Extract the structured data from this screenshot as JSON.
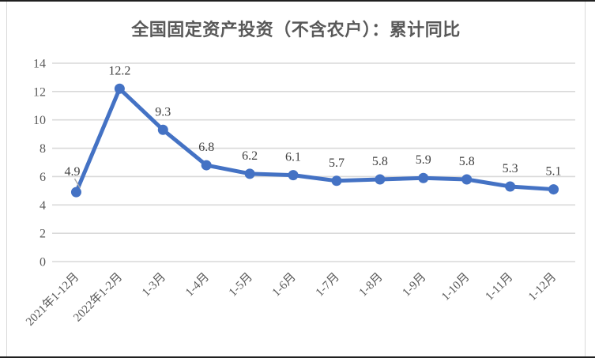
{
  "chart_data": {
    "type": "line",
    "title": "全国固定资产投资（不含农户）：累计同比",
    "categories": [
      "2021年1-12月",
      "2022年1-2月",
      "1-3月",
      "1-4月",
      "1-5月",
      "1-6月",
      "1-7月",
      "1-8月",
      "1-9月",
      "1-10月",
      "1-11月",
      "1-12月"
    ],
    "values": [
      4.9,
      12.2,
      9.3,
      6.8,
      6.2,
      6.1,
      5.7,
      5.8,
      5.9,
      5.8,
      5.3,
      5.1
    ],
    "ylim": [
      0,
      14
    ],
    "yticks": [
      0,
      2,
      4,
      6,
      8,
      10,
      12,
      14
    ],
    "xlabel": "",
    "ylabel": "",
    "grid": true,
    "legend": false,
    "data_labels": true,
    "data_label_decimals": 1,
    "first_label_leader_line": true,
    "x_tick_rotation": -45,
    "colors": {
      "line": "#4472C4",
      "marker": "#4472C4",
      "gridline": "#D9D9D9",
      "title_text": "#595959",
      "axis_text": "#595959",
      "data_label_text": "#3F3F3F",
      "leader_line": "#A6A6A6",
      "frame_dark": "#1F1F1F",
      "frame_light": "#D9D9D9",
      "background": "#FFFFFF"
    }
  }
}
